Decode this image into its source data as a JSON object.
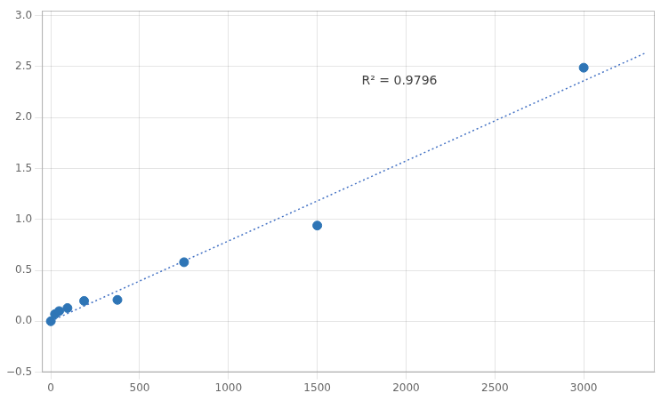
{
  "chart_data": {
    "type": "scatter",
    "x": [
      0,
      23.4,
      46.9,
      93.8,
      187.5,
      375,
      750,
      1500,
      3000
    ],
    "y": [
      0.0,
      0.07,
      0.1,
      0.13,
      0.2,
      0.21,
      0.58,
      0.94,
      2.49
    ],
    "color": "#2E75B6",
    "trendline": {
      "x": [
        0,
        3350
      ],
      "y": [
        0.002235,
        2.636608
      ],
      "color": "#4472C4",
      "line_style": "dotted"
    },
    "annotations": [
      {
        "x": 1750,
        "y": 2.3,
        "text": "R² = 0.9796"
      }
    ],
    "xlim": [
      -50,
      3400
    ],
    "ylim": [
      -0.5,
      3.05
    ],
    "xticks": [
      0,
      500,
      1000,
      1500,
      2000,
      2500,
      3000
    ],
    "yticks": [
      {
        "value": -0.5,
        "label": "−0.5"
      },
      {
        "value": 0.0,
        "label": "0.0"
      },
      {
        "value": 0.5,
        "label": "0.5"
      },
      {
        "value": 1.0,
        "label": "1.0"
      },
      {
        "value": 1.5,
        "label": "1.5"
      },
      {
        "value": 2.0,
        "label": "2.0"
      },
      {
        "value": 2.5,
        "label": "2.5"
      },
      {
        "value": 3.0,
        "label": "3.0"
      }
    ],
    "grid": true
  }
}
